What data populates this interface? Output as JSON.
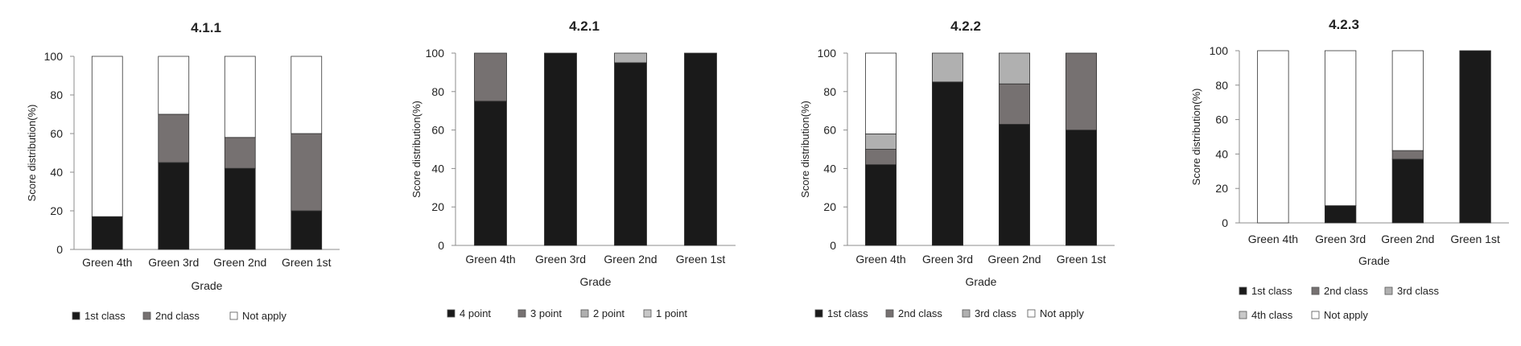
{
  "colors": {
    "black": "#1a1a1a",
    "dark_gray": "#767171",
    "light_gray": "#b0b0b0",
    "lighter_gray": "#c8c8c8",
    "white": "#ffffff",
    "axis": "#8c8c8c"
  },
  "chart_data": [
    {
      "type": "bar",
      "stacked": true,
      "title": "4.1.1",
      "xlabel": "Grade",
      "ylabel": "Score distribution(%)",
      "ylim": [
        0,
        100
      ],
      "yticks": [
        0,
        20,
        40,
        60,
        80,
        100
      ],
      "grid": false,
      "legend_position": "bottom",
      "categories": [
        "Green 4th",
        "Green 3rd",
        "Green 2nd",
        "Green 1st"
      ],
      "series": [
        {
          "name": "1st class",
          "color": "#1a1a1a",
          "values": [
            17,
            45,
            42,
            20
          ]
        },
        {
          "name": "2nd class",
          "color": "#767171",
          "values": [
            0,
            25,
            16,
            40
          ]
        },
        {
          "name": "Not apply",
          "color": "#ffffff",
          "values": [
            83,
            30,
            42,
            40
          ]
        }
      ]
    },
    {
      "type": "bar",
      "stacked": true,
      "title": "4.2.1",
      "xlabel": "Grade",
      "ylabel": "Score distribution(%)",
      "ylim": [
        0,
        100
      ],
      "yticks": [
        0,
        20,
        40,
        60,
        80,
        100
      ],
      "grid": false,
      "legend_position": "bottom",
      "categories": [
        "Green 4th",
        "Green 3rd",
        "Green 2nd",
        "Green 1st"
      ],
      "series": [
        {
          "name": "4 point",
          "color": "#1a1a1a",
          "values": [
            75,
            100,
            95,
            100
          ]
        },
        {
          "name": "3 point",
          "color": "#767171",
          "values": [
            25,
            0,
            0,
            0
          ]
        },
        {
          "name": "2 point",
          "color": "#b0b0b0",
          "values": [
            0,
            0,
            5,
            0
          ]
        },
        {
          "name": "1 point",
          "color": "#c8c8c8",
          "values": [
            0,
            0,
            0,
            0
          ]
        }
      ]
    },
    {
      "type": "bar",
      "stacked": true,
      "title": "4.2.2",
      "xlabel": "Grade",
      "ylabel": "Score distribution(%)",
      "ylim": [
        0,
        100
      ],
      "yticks": [
        0,
        20,
        40,
        60,
        80,
        100
      ],
      "grid": false,
      "legend_position": "bottom",
      "categories": [
        "Green 4th",
        "Green 3rd",
        "Green 2nd",
        "Green 1st"
      ],
      "series": [
        {
          "name": "1st class",
          "color": "#1a1a1a",
          "values": [
            42,
            85,
            63,
            60
          ]
        },
        {
          "name": "2nd class",
          "color": "#767171",
          "values": [
            8,
            0,
            21,
            40
          ]
        },
        {
          "name": "3rd class",
          "color": "#b0b0b0",
          "values": [
            8,
            15,
            16,
            0
          ]
        },
        {
          "name": "Not apply",
          "color": "#ffffff",
          "values": [
            42,
            0,
            0,
            0
          ]
        }
      ]
    },
    {
      "type": "bar",
      "stacked": true,
      "title": "4.2.3",
      "xlabel": "Grade",
      "ylabel": "Score distribution(%)",
      "ylim": [
        0,
        100
      ],
      "yticks": [
        0,
        20,
        40,
        60,
        80,
        100
      ],
      "grid": false,
      "legend_position": "bottom",
      "categories": [
        "Green 4th",
        "Green 3rd",
        "Green 2nd",
        "Green 1st"
      ],
      "series": [
        {
          "name": "1st class",
          "color": "#1a1a1a",
          "values": [
            0,
            10,
            37,
            100
          ]
        },
        {
          "name": "2nd class",
          "color": "#767171",
          "values": [
            0,
            0,
            5,
            0
          ]
        },
        {
          "name": "3rd class",
          "color": "#b0b0b0",
          "values": [
            0,
            0,
            0,
            0
          ]
        },
        {
          "name": "4th class",
          "color": "#c8c8c8",
          "values": [
            0,
            0,
            0,
            0
          ]
        },
        {
          "name": "Not apply",
          "color": "#ffffff",
          "values": [
            100,
            90,
            58,
            0
          ]
        }
      ]
    }
  ]
}
